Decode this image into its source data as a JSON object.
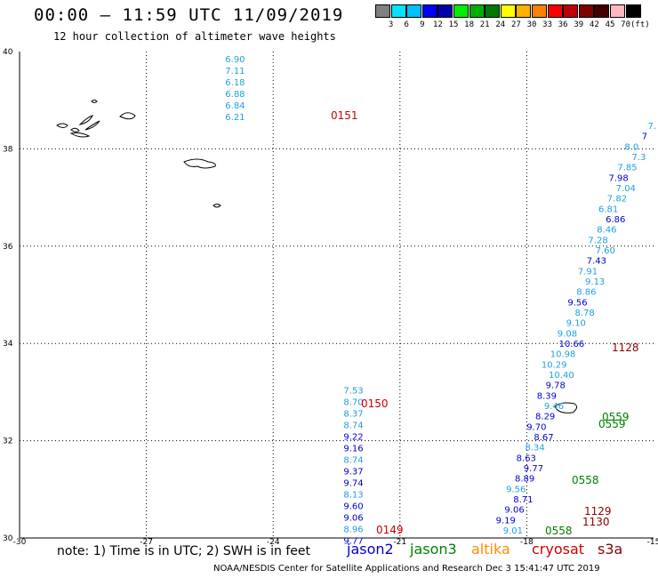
{
  "title": "00:00 – 11:59 UTC 11/09/2019",
  "subtitle": "12 hour collection of altimeter wave heights",
  "colorbar": {
    "labels": [
      "3",
      "6",
      "9",
      "12",
      "15",
      "18",
      "21",
      "24",
      "27",
      "30",
      "33",
      "36",
      "39",
      "42",
      "45",
      "70"
    ],
    "unit": "(ft)",
    "colors": [
      "#808080",
      "#00e5ff",
      "#00bfff",
      "#0000ff",
      "#0000aa",
      "#00ee00",
      "#00b000",
      "#007800",
      "#ffff00",
      "#ffb000",
      "#ff8000",
      "#ff0000",
      "#c00000",
      "#800000",
      "#400000",
      "#ffb6c1",
      "#000000"
    ]
  },
  "axes": {
    "lat_labels": [
      "40",
      "38",
      "36",
      "34",
      "32",
      "30"
    ],
    "lon_labels": [
      "-30",
      "-27",
      "-24",
      "-21",
      "-18",
      "-15"
    ]
  },
  "satellite_colors": {
    "jason2": "#0000cc",
    "jason3": "#008000",
    "altika": "#ff8c00",
    "cryosat": "#cc0000",
    "s3a": "#8b0000",
    "light": "#1e9fe0"
  },
  "tracks": [
    {
      "lon": -24.9,
      "lat0": 39.78,
      "values": [
        "6.90",
        "7.11",
        "6.18",
        "6.88",
        "6.84",
        "6.21"
      ],
      "sats": [
        "light",
        "light",
        "light",
        "light",
        "light",
        "light"
      ]
    },
    {
      "lon": -22.1,
      "lat0": 32.97,
      "values": [
        "7.53",
        "8.70",
        "8.37",
        "8.74",
        "9.22",
        "9.16",
        "8.74",
        "9.37",
        "9.74",
        "8.13",
        "9.60",
        "9.06",
        "8.96",
        "9.77"
      ],
      "sats": [
        "light",
        "light",
        "light",
        "light",
        "jason2",
        "jason2",
        "light",
        "jason2",
        "jason2",
        "light",
        "jason2",
        "jason2",
        "light",
        "jason2"
      ]
    }
  ],
  "diag_values": [
    "7.",
    "7",
    "8.0",
    "7.3",
    "7.85",
    "7.98",
    "7.04",
    "7.82",
    "6.81",
    "6.86",
    "8.46",
    "7.28",
    "7.60",
    "7.43",
    "7.91",
    "9.13",
    "8.86",
    "9.56",
    "8.78",
    "9.10",
    "9.08",
    "10.66",
    "10.98",
    "10.29",
    "10.40",
    "9.78",
    "8.39",
    "9.46",
    "8.29",
    "9.70",
    "8.67",
    "8.34",
    "8.63",
    "9.77",
    "8.89",
    "9.56",
    "8.71",
    "9.06",
    "9.19",
    "9.01"
  ],
  "times": [
    {
      "label": "0151",
      "sat": "cryosat"
    },
    {
      "label": "0150",
      "sat": "cryosat"
    },
    {
      "label": "0149",
      "sat": "cryosat"
    },
    {
      "label": "1128",
      "sat": "s3a"
    },
    {
      "label": "0559",
      "sat": "jason3"
    },
    {
      "label": "0559",
      "sat": "jason3"
    },
    {
      "label": "0558",
      "sat": "jason3"
    },
    {
      "label": "1129",
      "sat": "s3a"
    },
    {
      "label": "1130",
      "sat": "s3a"
    },
    {
      "label": "0558",
      "sat": "jason3"
    }
  ],
  "note": "note: 1) Time is in UTC; 2) SWH is in feet",
  "legend": {
    "jason2": "jason2",
    "jason3": "jason3",
    "altika": "altika",
    "cryosat": "cryosat",
    "s3a": "s3a"
  },
  "credit": "NOAA/NESDIS Center for Satellite Applications and Research   Dec  3 15:41:47 UTC 2019"
}
